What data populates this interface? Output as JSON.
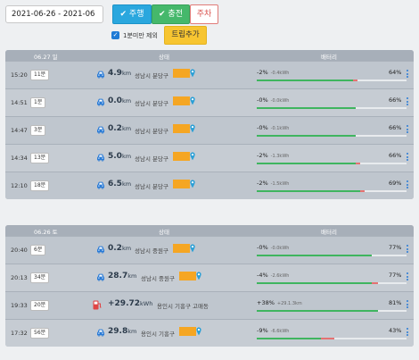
{
  "toolbar": {
    "date_range": "2021-06-26 - 2021-06",
    "drive_label": "✔ 주행",
    "charge_label": "✔ 충전",
    "park_label": "주차",
    "exclude_label": "1분미만 제외",
    "exclude_checked": true,
    "trip_add_label": "트립추가"
  },
  "headers": {
    "status": "상태",
    "battery": "배터리"
  },
  "colors": {
    "drive": "#2aa7de",
    "charge": "#45b86b",
    "park": "#d9534f",
    "trip": "#f7c531",
    "bar_fill": "#3fb55f",
    "bar_use": "#e57272"
  },
  "groups": [
    {
      "date": "06.27 일",
      "rows": [
        {
          "type": "drive",
          "time": "15:20",
          "duration": "11분",
          "value": "4.9",
          "unit": "km",
          "location": "성남시 분당구",
          "battery_change": "-2%",
          "kwh": "-0.4kWh",
          "battery_pct": "64%",
          "level": 0.64,
          "used": 0.02
        },
        {
          "type": "drive",
          "time": "14:51",
          "duration": "1분",
          "value": "0.0",
          "unit": "km",
          "location": "성남시 분당구",
          "battery_change": "-0%",
          "kwh": "-0.0kWh",
          "battery_pct": "66%",
          "level": 0.66,
          "used": 0.0
        },
        {
          "type": "drive",
          "time": "14:47",
          "duration": "3분",
          "value": "0.2",
          "unit": "km",
          "location": "성남시 분당구",
          "battery_change": "-0%",
          "kwh": "-0.1kWh",
          "battery_pct": "66%",
          "level": 0.66,
          "used": 0.0
        },
        {
          "type": "drive",
          "time": "14:34",
          "duration": "13분",
          "value": "5.0",
          "unit": "km",
          "location": "성남시 분당구",
          "battery_change": "-2%",
          "kwh": "-1.3kWh",
          "battery_pct": "66%",
          "level": 0.66,
          "used": 0.02
        },
        {
          "type": "drive",
          "time": "12:10",
          "duration": "18분",
          "value": "6.5",
          "unit": "km",
          "location": "성남시 분당구",
          "battery_change": "-2%",
          "kwh": "-1.5kWh",
          "battery_pct": "69%",
          "level": 0.69,
          "used": 0.02
        }
      ]
    },
    {
      "date": "06.26 토",
      "rows": [
        {
          "type": "drive",
          "time": "20:40",
          "duration": "6분",
          "value": "0.2",
          "unit": "km",
          "location": "성남시 중원구",
          "battery_change": "-0%",
          "kwh": "-0.0kWh",
          "battery_pct": "77%",
          "level": 0.77,
          "used": 0.0
        },
        {
          "type": "drive",
          "time": "20:13",
          "duration": "34분",
          "value": "28.7",
          "unit": "km",
          "location": "성남시 중원구",
          "battery_change": "-4%",
          "kwh": "-2.6kWh",
          "battery_pct": "77%",
          "level": 0.77,
          "used": 0.04
        },
        {
          "type": "charge",
          "time": "19:33",
          "duration": "20분",
          "value": "+29.72",
          "unit": "kWh",
          "location": "용인시 기흥구 고매동",
          "battery_change": "+38%",
          "kwh": "+29.1.3km",
          "battery_pct": "81%",
          "level": 0.81,
          "used": 0.0
        },
        {
          "type": "drive",
          "time": "17:32",
          "duration": "56분",
          "value": "29.8",
          "unit": "km",
          "location": "용인시 기흥구",
          "battery_change": "-9%",
          "kwh": "-6.6kWh",
          "battery_pct": "43%",
          "level": 0.43,
          "used": 0.09
        }
      ]
    }
  ]
}
